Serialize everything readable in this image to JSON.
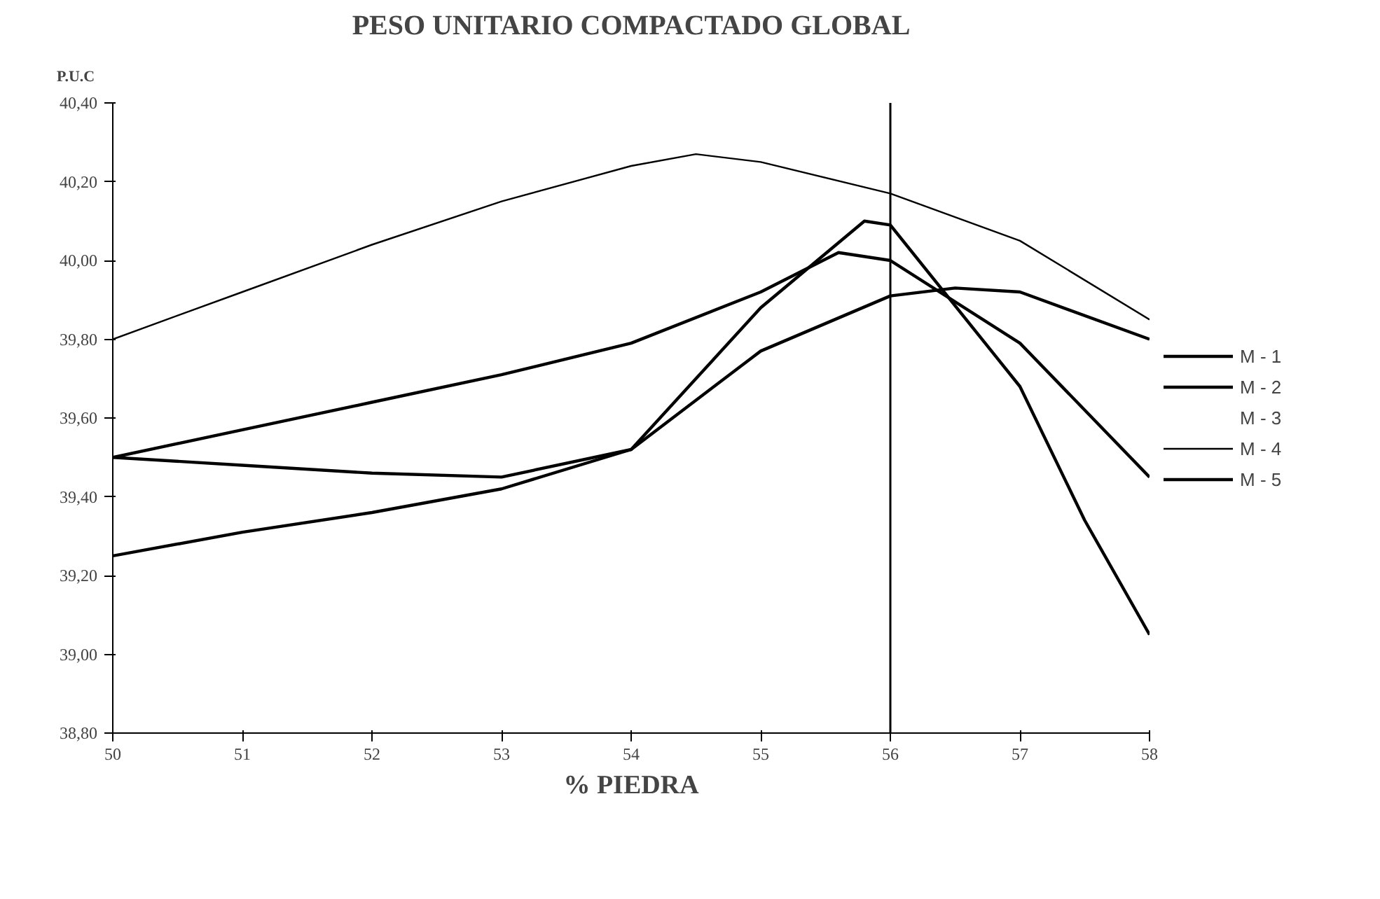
{
  "chart_data": {
    "type": "line",
    "title": "PESO UNITARIO COMPACTADO GLOBAL",
    "xlabel": "% PIEDRA",
    "ylabel": "P.U.C",
    "xlim": [
      50,
      58
    ],
    "xticks": [
      50,
      51,
      52,
      53,
      54,
      55,
      56,
      57,
      58
    ],
    "ylim": [
      38.8,
      40.4
    ],
    "yticks": [
      {
        "value": 38.8,
        "label": "38,80"
      },
      {
        "value": 39.0,
        "label": "39,00"
      },
      {
        "value": 39.2,
        "label": "39,20"
      },
      {
        "value": 39.4,
        "label": "39,40"
      },
      {
        "value": 39.6,
        "label": "39,60"
      },
      {
        "value": 39.8,
        "label": "39,80"
      },
      {
        "value": 40.0,
        "label": "40,00"
      },
      {
        "value": 40.2,
        "label": "40,20"
      },
      {
        "value": 40.4,
        "label": "40,40"
      }
    ],
    "grid": false,
    "legend": "right",
    "line_style": "solid",
    "marker": "none",
    "ref_lines": [
      {
        "axis": "x",
        "value": 56,
        "color": "#000000"
      }
    ],
    "series": [
      {
        "name": "M - 1",
        "color": "#000000",
        "x": [
          50,
          51,
          52,
          53,
          54,
          54.5,
          55,
          55.8,
          56,
          57,
          57.5,
          58
        ],
        "values": [
          39.5,
          39.48,
          39.46,
          39.45,
          39.52,
          39.7,
          39.88,
          40.1,
          40.09,
          39.68,
          39.34,
          39.05
        ]
      },
      {
        "name": "M - 2",
        "color": "#000000",
        "x": [
          50,
          51,
          52,
          53,
          54,
          55,
          55.6,
          56,
          57,
          58
        ],
        "values": [
          39.5,
          39.57,
          39.64,
          39.71,
          39.79,
          39.92,
          40.02,
          40.0,
          39.79,
          39.45
        ]
      },
      {
        "name": "M - 3"
      },
      {
        "name": "M - 4",
        "color": "#000000",
        "x": [
          50,
          51,
          52,
          53,
          54,
          54.5,
          55,
          56,
          57,
          58
        ],
        "values": [
          39.8,
          39.92,
          40.04,
          40.15,
          40.24,
          40.27,
          40.25,
          40.17,
          40.05,
          39.85
        ]
      },
      {
        "name": "M - 5",
        "color": "#000000",
        "x": [
          50,
          51,
          52,
          53,
          54,
          55,
          56,
          56.5,
          57,
          58
        ],
        "values": [
          39.25,
          39.31,
          39.36,
          39.42,
          39.52,
          39.77,
          39.91,
          39.93,
          39.92,
          39.8
        ]
      }
    ]
  }
}
